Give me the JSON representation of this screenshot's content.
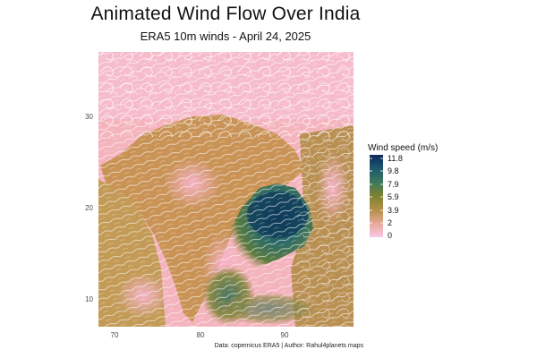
{
  "title": "Animated Wind Flow Over India",
  "subtitle": "ERA5 10m winds - April 24, 2025",
  "caption": "Data: copernicus ERA5 | Author: Rahul4planets maps",
  "axes": {
    "x_ticks": [
      "70",
      "80",
      "90"
    ],
    "y_ticks": [
      "30",
      "20",
      "10"
    ]
  },
  "legend": {
    "title": "Wind speed (m/s)",
    "labels": [
      "11.8",
      "9.8",
      "7.9",
      "5.9",
      "3.9",
      "2",
      "0"
    ],
    "colors": [
      "#0d2a5c",
      "#1e5a6e",
      "#3f7a5a",
      "#7d8230",
      "#b58f47",
      "#e8a99b",
      "#f9c8e6"
    ]
  },
  "colors": {
    "land_low": "#f7b8c4",
    "land_mid": "#c89058",
    "sea_high": "#1d4f63",
    "streamline": "#ffffff"
  }
}
